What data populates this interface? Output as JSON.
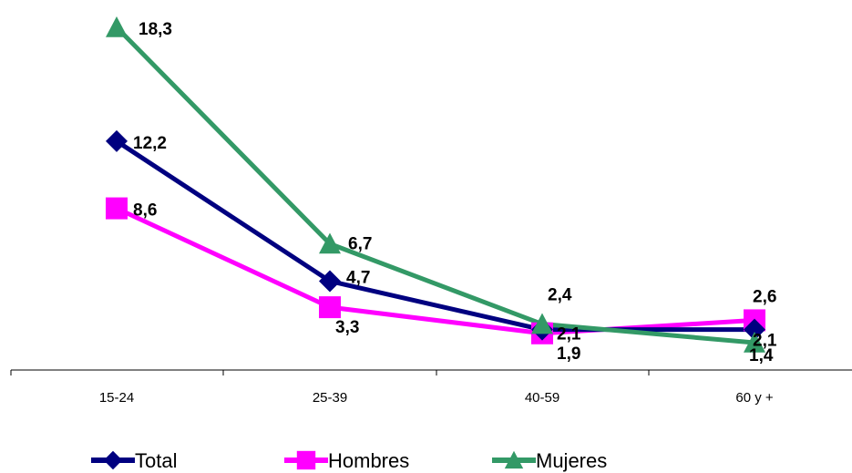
{
  "chart_data": {
    "type": "line",
    "categories": [
      "15-24",
      "25-39",
      "40-59",
      "60 y +"
    ],
    "series": [
      {
        "name": "Total",
        "values": [
          12.2,
          4.7,
          2.1,
          2.1
        ],
        "labels": [
          "12,2",
          "4,7",
          "2,1",
          "2,1"
        ],
        "color": "#000080",
        "marker": "diamond"
      },
      {
        "name": "Hombres",
        "values": [
          8.6,
          3.3,
          1.9,
          2.6
        ],
        "labels": [
          "8,6",
          "3,3",
          "1,9",
          "2,6"
        ],
        "color": "#ff00ff",
        "marker": "square"
      },
      {
        "name": "Mujeres",
        "values": [
          18.3,
          6.7,
          2.4,
          1.4
        ],
        "labels": [
          "18,3",
          "6,7",
          "2,4",
          "1,4"
        ],
        "color": "#339966",
        "marker": "triangle"
      }
    ],
    "title": "",
    "xlabel": "",
    "ylabel": "",
    "y_axis_visible": false,
    "grid": false,
    "legend_position": "bottom"
  }
}
